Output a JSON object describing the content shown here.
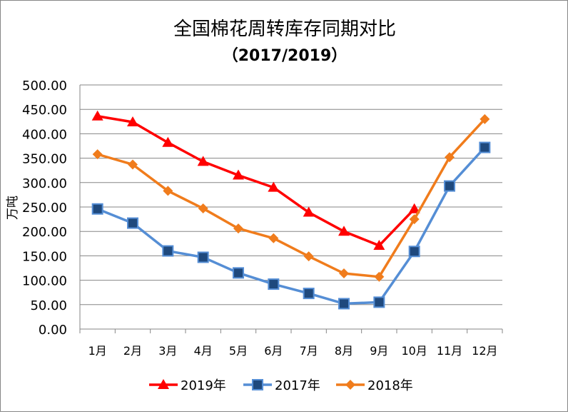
{
  "chart_data": {
    "type": "line",
    "title": "全国棉花周转库存同期对比",
    "subtitle": "（2017/2019）",
    "xlabel": "",
    "ylabel": "万吨",
    "ylim": [
      0,
      500
    ],
    "yticks": [
      "0.00",
      "50.00",
      "100.00",
      "150.00",
      "200.00",
      "250.00",
      "300.00",
      "350.00",
      "400.00",
      "450.00",
      "500.00"
    ],
    "categories": [
      "1月",
      "2月",
      "3月",
      "4月",
      "5月",
      "6月",
      "7月",
      "8月",
      "9月",
      "10月",
      "11月",
      "12月"
    ],
    "grid": true,
    "legend_position": "bottom",
    "series": [
      {
        "name": "2019年",
        "color": "#ff0000",
        "marker": "triangle",
        "values": [
          436,
          424,
          382,
          343,
          315,
          290,
          239,
          200,
          171,
          246,
          null,
          null
        ]
      },
      {
        "name": "2017年",
        "color": "#558ed5",
        "marker": "square",
        "marker_fill": "#1f497d",
        "values": [
          246,
          217,
          160,
          147,
          115,
          92,
          73,
          52,
          55,
          159,
          293,
          372
        ]
      },
      {
        "name": "2018年",
        "color": "#f07c1c",
        "marker": "diamond",
        "values": [
          358,
          337,
          283,
          247,
          206,
          186,
          149,
          114,
          107,
          225,
          352,
          430
        ]
      }
    ]
  }
}
